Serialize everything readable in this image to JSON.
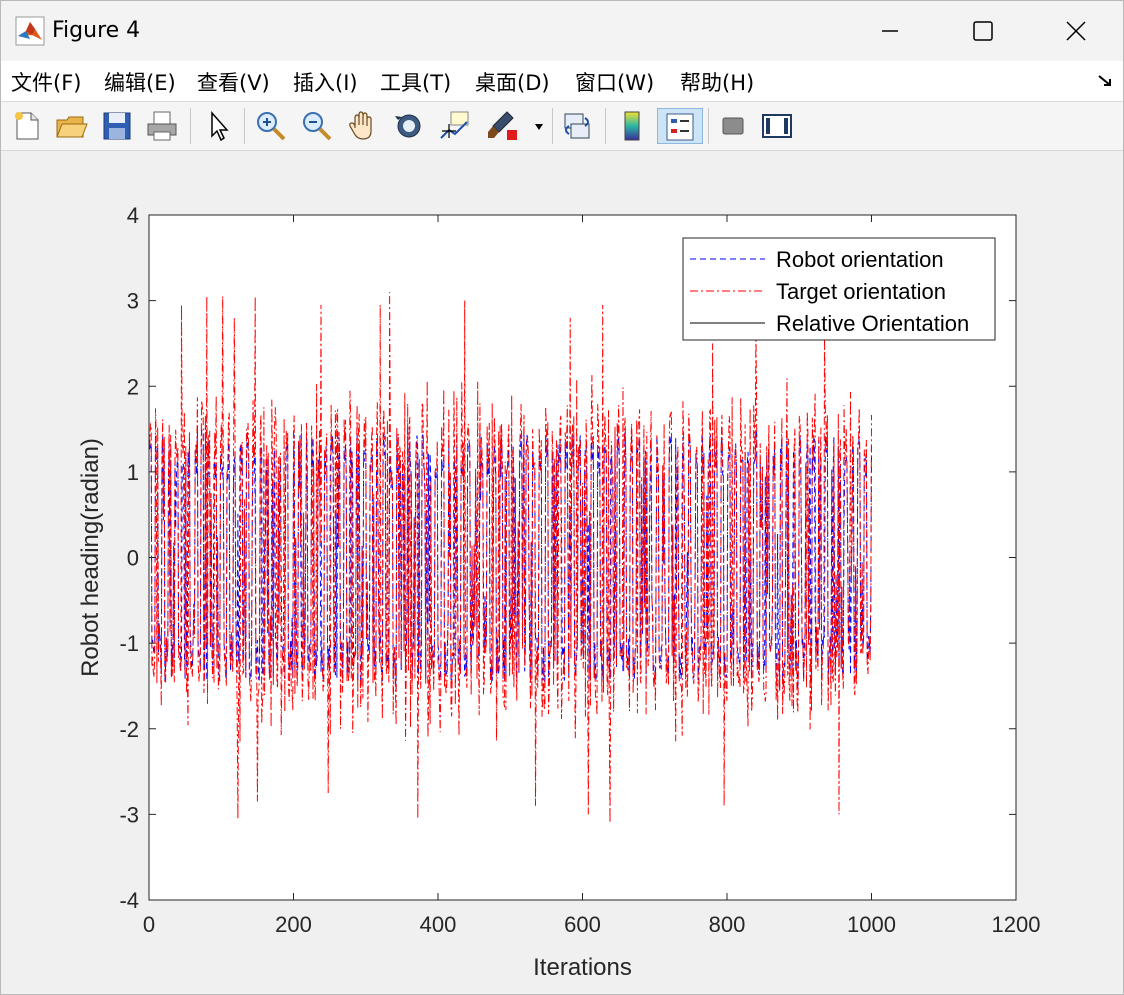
{
  "window": {
    "title": "Figure 4"
  },
  "menu": {
    "items": [
      "文件(F)",
      "编辑(E)",
      "查看(V)",
      "插入(I)",
      "工具(T)",
      "桌面(D)",
      "窗口(W)",
      "帮助(H)"
    ]
  },
  "toolbar": {
    "tools": [
      {
        "name": "new-figure-icon"
      },
      {
        "name": "open-file-icon"
      },
      {
        "name": "save-icon"
      },
      {
        "name": "print-icon"
      },
      {
        "name": "pointer-icon"
      },
      {
        "name": "zoom-in-icon"
      },
      {
        "name": "zoom-out-icon"
      },
      {
        "name": "pan-hand-icon"
      },
      {
        "name": "rotate-3d-icon"
      },
      {
        "name": "data-cursor-icon"
      },
      {
        "name": "brush-icon"
      },
      {
        "name": "link-plot-icon"
      },
      {
        "name": "colorbar-icon"
      },
      {
        "name": "legend-icon",
        "active": true
      },
      {
        "name": "hide-plot-tools-icon"
      },
      {
        "name": "show-plot-tools-icon"
      }
    ]
  },
  "chart_data": {
    "type": "line",
    "title": "",
    "xlabel": "Iterations",
    "ylabel": "Robot heading(radian)",
    "xlim": [
      0,
      1200
    ],
    "ylim": [
      -4,
      4
    ],
    "xticks": [
      0,
      200,
      400,
      600,
      800,
      1000,
      1200
    ],
    "yticks": [
      -4,
      -3,
      -2,
      -1,
      0,
      1,
      2,
      3,
      4
    ],
    "grid": false,
    "legend_position": "top-right",
    "series": [
      {
        "name": "Robot orientation",
        "color": "#0000ff",
        "style": "dashed",
        "x_range": [
          0,
          1000
        ],
        "y_range": [
          -1.55,
          1.55
        ]
      },
      {
        "name": "Target orientation",
        "color": "#ff0000",
        "style": "dashdot",
        "x_range": [
          0,
          1000
        ],
        "y_range": [
          -3.05,
          3.1
        ]
      },
      {
        "name": "Relative Orientation",
        "color": "#000000",
        "style": "solid",
        "x_range": [],
        "y_range": []
      }
    ],
    "spikes": [
      {
        "x": 45,
        "y": 2.95
      },
      {
        "x": 80,
        "y": 3.05
      },
      {
        "x": 102,
        "y": 3.05
      },
      {
        "x": 118,
        "y": 2.8
      },
      {
        "x": 147,
        "y": 3.05
      },
      {
        "x": 238,
        "y": 2.95
      },
      {
        "x": 320,
        "y": 2.95
      },
      {
        "x": 333,
        "y": 3.1
      },
      {
        "x": 437,
        "y": 3.0
      },
      {
        "x": 583,
        "y": 2.8
      },
      {
        "x": 628,
        "y": 2.95
      },
      {
        "x": 780,
        "y": 2.5
      },
      {
        "x": 840,
        "y": 2.6
      },
      {
        "x": 935,
        "y": 2.6
      },
      {
        "x": 123,
        "y": -3.05
      },
      {
        "x": 150,
        "y": -2.85
      },
      {
        "x": 248,
        "y": -2.75
      },
      {
        "x": 372,
        "y": -3.05
      },
      {
        "x": 535,
        "y": -2.9
      },
      {
        "x": 608,
        "y": -3.0
      },
      {
        "x": 638,
        "y": -3.1
      },
      {
        "x": 796,
        "y": -2.9
      },
      {
        "x": 955,
        "y": -3.0
      }
    ]
  }
}
